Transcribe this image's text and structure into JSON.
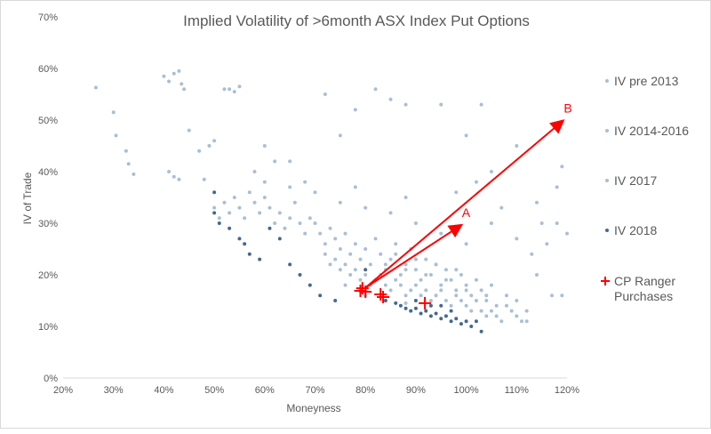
{
  "chart_data": {
    "type": "scatter",
    "title": "Implied Volatility of >6month ASX Index Put Options",
    "xlabel": "Moneyness",
    "ylabel": "IV of Trade",
    "xlim": [
      20,
      120
    ],
    "ylim": [
      0,
      70
    ],
    "x_ticks": [
      "20%",
      "30%",
      "40%",
      "50%",
      "60%",
      "70%",
      "80%",
      "90%",
      "100%",
      "110%",
      "120%"
    ],
    "y_ticks": [
      "0%",
      "10%",
      "20%",
      "30%",
      "40%",
      "50%",
      "60%",
      "70%"
    ],
    "grid": false,
    "legend_placement": "right",
    "series": [
      {
        "name": "IV pre 2013",
        "color": "#a9bfd6",
        "marker": "dot",
        "points": [
          [
            26.5,
            56.3
          ],
          [
            30,
            51.5
          ],
          [
            30.5,
            47
          ],
          [
            32.5,
            44
          ],
          [
            33,
            41.5
          ],
          [
            34,
            39.5
          ],
          [
            40,
            58.5
          ],
          [
            41,
            57.5
          ],
          [
            42,
            59
          ],
          [
            43,
            59.5
          ],
          [
            43.5,
            57
          ],
          [
            44,
            56
          ],
          [
            41,
            40
          ],
          [
            42,
            39
          ],
          [
            43,
            38.5
          ],
          [
            45,
            48
          ],
          [
            47,
            44
          ],
          [
            48,
            38.5
          ],
          [
            49,
            45
          ],
          [
            50,
            46
          ],
          [
            52,
            56
          ],
          [
            53,
            56
          ],
          [
            54,
            55.5
          ],
          [
            55,
            56.5
          ],
          [
            60,
            45
          ],
          [
            62,
            42
          ],
          [
            65,
            42
          ],
          [
            72,
            55
          ],
          [
            78,
            52
          ],
          [
            75,
            47
          ],
          [
            82,
            56
          ],
          [
            85,
            54
          ],
          [
            88,
            53
          ],
          [
            95,
            53
          ],
          [
            100,
            47
          ],
          [
            103,
            53
          ],
          [
            105,
            40
          ],
          [
            110,
            45
          ],
          [
            114,
            34
          ],
          [
            118,
            37
          ],
          [
            119,
            41
          ],
          [
            118,
            30
          ],
          [
            120,
            28
          ],
          [
            116,
            26
          ],
          [
            114,
            20
          ],
          [
            117,
            16
          ],
          [
            119,
            16
          ],
          [
            111,
            11
          ],
          [
            109,
            13
          ]
        ]
      },
      {
        "name": "IV 2014-2016",
        "color": "#a9bfd6",
        "marker": "dot",
        "points": [
          [
            50,
            33
          ],
          [
            51,
            31
          ],
          [
            52,
            34
          ],
          [
            53,
            32
          ],
          [
            54,
            35
          ],
          [
            55,
            33
          ],
          [
            56,
            31
          ],
          [
            57,
            36
          ],
          [
            58,
            34
          ],
          [
            59,
            32
          ],
          [
            60,
            35
          ],
          [
            61,
            33
          ],
          [
            62,
            30
          ],
          [
            63,
            32
          ],
          [
            64,
            29
          ],
          [
            65,
            31
          ],
          [
            66,
            34
          ],
          [
            67,
            30
          ],
          [
            68,
            28
          ],
          [
            69,
            31
          ],
          [
            70,
            30
          ],
          [
            71,
            28
          ],
          [
            72,
            26
          ],
          [
            73,
            29
          ],
          [
            74,
            27
          ],
          [
            75,
            25
          ],
          [
            76,
            28
          ],
          [
            77,
            24
          ],
          [
            78,
            26
          ],
          [
            79,
            23
          ],
          [
            80,
            25
          ],
          [
            81,
            22
          ],
          [
            82,
            27
          ],
          [
            83,
            24
          ],
          [
            84,
            21
          ],
          [
            85,
            23
          ],
          [
            86,
            26
          ],
          [
            87,
            20
          ],
          [
            88,
            22
          ],
          [
            89,
            25
          ],
          [
            90,
            21
          ],
          [
            91,
            19
          ],
          [
            92,
            23
          ],
          [
            93,
            20
          ],
          [
            94,
            22
          ],
          [
            95,
            18
          ],
          [
            96,
            21
          ],
          [
            97,
            19
          ],
          [
            98,
            17
          ],
          [
            99,
            20
          ],
          [
            100,
            18
          ],
          [
            101,
            16
          ],
          [
            102,
            19
          ],
          [
            103,
            17
          ],
          [
            104,
            15
          ],
          [
            105,
            18
          ],
          [
            106,
            14
          ],
          [
            108,
            16
          ],
          [
            110,
            15
          ],
          [
            112,
            13
          ],
          [
            60,
            38
          ],
          [
            65,
            37
          ],
          [
            70,
            36
          ],
          [
            75,
            34
          ],
          [
            80,
            33
          ],
          [
            85,
            32
          ],
          [
            90,
            30
          ],
          [
            95,
            28
          ],
          [
            100,
            26
          ],
          [
            105,
            30
          ],
          [
            110,
            27
          ],
          [
            58,
            40
          ],
          [
            68,
            38
          ],
          [
            78,
            37
          ],
          [
            88,
            35
          ],
          [
            98,
            36
          ],
          [
            102,
            38
          ],
          [
            107,
            33
          ],
          [
            113,
            24
          ],
          [
            115,
            30
          ]
        ]
      },
      {
        "name": "IV 2017",
        "color": "#a9bfd6",
        "marker": "dot",
        "points": [
          [
            72,
            24
          ],
          [
            73,
            22
          ],
          [
            74,
            23
          ],
          [
            75,
            21
          ],
          [
            76,
            22
          ],
          [
            77,
            20
          ],
          [
            78,
            21
          ],
          [
            79,
            19
          ],
          [
            80,
            20
          ],
          [
            81,
            18
          ],
          [
            82,
            19
          ],
          [
            83,
            20
          ],
          [
            84,
            18
          ],
          [
            85,
            17
          ],
          [
            86,
            19
          ],
          [
            87,
            18
          ],
          [
            88,
            16
          ],
          [
            89,
            17
          ],
          [
            90,
            18
          ],
          [
            91,
            16
          ],
          [
            92,
            17
          ],
          [
            93,
            15
          ],
          [
            94,
            16
          ],
          [
            95,
            17
          ],
          [
            96,
            15
          ],
          [
            97,
            14
          ],
          [
            98,
            16
          ],
          [
            99,
            15
          ],
          [
            100,
            14
          ],
          [
            101,
            13
          ],
          [
            102,
            15
          ],
          [
            103,
            13
          ],
          [
            104,
            12
          ],
          [
            105,
            13
          ],
          [
            106,
            12
          ],
          [
            107,
            11
          ],
          [
            84,
            22
          ],
          [
            88,
            21
          ],
          [
            92,
            20
          ],
          [
            96,
            19
          ],
          [
            100,
            17
          ],
          [
            104,
            16
          ],
          [
            108,
            14
          ],
          [
            110,
            12
          ],
          [
            112,
            11
          ],
          [
            86,
            24
          ],
          [
            90,
            23
          ],
          [
            94,
            22
          ],
          [
            98,
            21
          ],
          [
            76,
            18
          ],
          [
            80,
            16
          ],
          [
            84,
            15
          ],
          [
            88,
            14.5
          ]
        ]
      },
      {
        "name": "IV 2018",
        "color": "#44698f",
        "marker": "dot",
        "points": [
          [
            50,
            36
          ],
          [
            50,
            32
          ],
          [
            51,
            30
          ],
          [
            53,
            29
          ],
          [
            55,
            27
          ],
          [
            56,
            26
          ],
          [
            57,
            24
          ],
          [
            59,
            23
          ],
          [
            61,
            29
          ],
          [
            63,
            27
          ],
          [
            65,
            22
          ],
          [
            67,
            20
          ],
          [
            69,
            18
          ],
          [
            71,
            16
          ],
          [
            74,
            15
          ],
          [
            80,
            21
          ],
          [
            84,
            15
          ],
          [
            86,
            14.5
          ],
          [
            87,
            14
          ],
          [
            88,
            13.5
          ],
          [
            89,
            13
          ],
          [
            90,
            13.5
          ],
          [
            91,
            12.5
          ],
          [
            92,
            13
          ],
          [
            93,
            12
          ],
          [
            94,
            12.5
          ],
          [
            95,
            11.5
          ],
          [
            96,
            12
          ],
          [
            97,
            11
          ],
          [
            98,
            11.5
          ],
          [
            99,
            10.5
          ],
          [
            100,
            11
          ],
          [
            101,
            10
          ],
          [
            102,
            11
          ],
          [
            103,
            9
          ],
          [
            97,
            13
          ],
          [
            93,
            14
          ],
          [
            90,
            15
          ],
          [
            95,
            14
          ]
        ]
      },
      {
        "name": "CP Ranger Purchases",
        "color": "#ff0000",
        "marker": "plus",
        "points": [
          [
            79.4,
            17.4
          ],
          [
            80,
            16.7
          ],
          [
            79,
            16.9
          ],
          [
            83,
            16.2
          ],
          [
            83.5,
            15.7
          ],
          [
            91.8,
            14.5
          ]
        ]
      }
    ],
    "annotations": [
      {
        "label": "A",
        "from": [
          80,
          17.5
        ],
        "to": [
          98.8,
          29.5
        ],
        "color": "#ff0000"
      },
      {
        "label": "B",
        "from": [
          80,
          17.5
        ],
        "to": [
          119,
          49.7
        ],
        "color": "#ff0000"
      }
    ]
  }
}
